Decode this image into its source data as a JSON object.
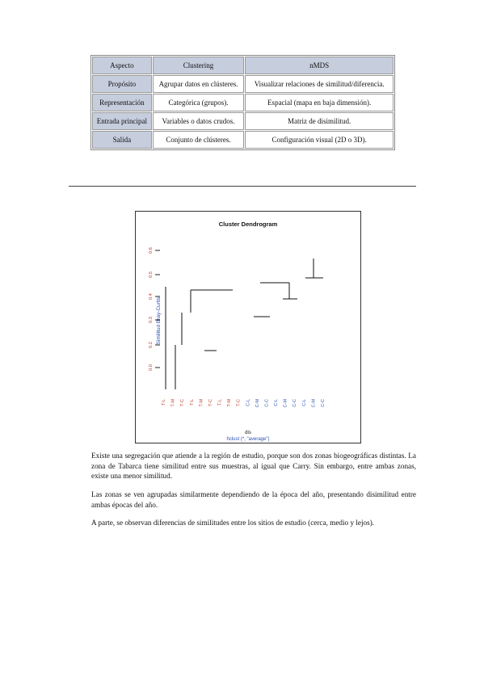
{
  "table": {
    "headers": [
      "Aspecto",
      "Clustering",
      "nMDS"
    ],
    "rows": [
      [
        "Propósito",
        "Agrupar datos en clústeres.",
        "Visualizar relaciones de similitud/diferencia."
      ],
      [
        "Representación",
        "Categórica (grupos).",
        "Espacial (mapa en baja dimensión)."
      ],
      [
        "Entrada principal",
        "Variables o datos crudos.",
        "Matriz de disimilitud."
      ],
      [
        "Salida",
        "Conjunto de clústeres.",
        "Configuración visual (2D o 3D)."
      ]
    ]
  },
  "figure": {
    "title": "Cluster Dendrogram",
    "ylabel": "Similitud Bray-Curtis",
    "xlabel_line1": "dis",
    "xlabel_line2": "hclust (*, \"average\")",
    "y_ticks": [
      "0.0",
      "0.2",
      "0.3",
      "0.4",
      "0.5",
      "0.6"
    ],
    "leaf_labels": [
      "T-L",
      "T-M",
      "T-C",
      "T-L",
      "T-M",
      "T-C",
      "T-L",
      "T-M",
      "T-C",
      "C-L",
      "C-M",
      "C-C",
      "C-L",
      "C-M",
      "C-C",
      "C-L",
      "C-M",
      "C-C"
    ]
  },
  "paragraphs": [
    "Existe una segregación que atiende a la región de estudio, porque son dos zonas biogeográficas distintas. La zona de Tabarca tiene similitud entre sus muestras, al igual que Carry. Sin embargo, entre ambas zonas, existe una menor similitud.",
    "Las zonas se ven agrupadas similarmente dependiendo de la época del año, presentando disimilitud entre ambas épocas del año.",
    "A parte, se observan diferencias de similitudes entre los sitios de estudio (cerca, medio y lejos)."
  ]
}
